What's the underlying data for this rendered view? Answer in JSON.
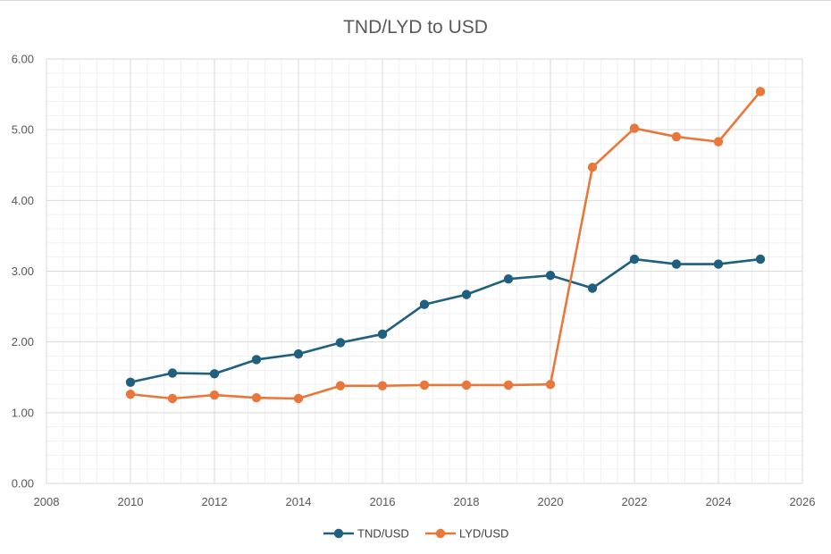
{
  "chart_data": {
    "type": "line",
    "title": "TND/LYD to USD",
    "xlabel": "",
    "ylabel": "",
    "xlim": [
      2008,
      2026
    ],
    "ylim": [
      0,
      6
    ],
    "x_ticks": [
      "2008",
      "2010",
      "2012",
      "2014",
      "2016",
      "2018",
      "2020",
      "2022",
      "2024",
      "2026"
    ],
    "y_ticks": [
      "0.00",
      "1.00",
      "2.00",
      "3.00",
      "4.00",
      "5.00",
      "6.00"
    ],
    "grid": true,
    "legend_position": "bottom",
    "x": [
      2010,
      2011,
      2012,
      2013,
      2014,
      2015,
      2016,
      2017,
      2018,
      2019,
      2020,
      2021,
      2022,
      2023,
      2024,
      2025
    ],
    "series": [
      {
        "name": "TND/USD",
        "color": "#1f5f7f",
        "values": [
          1.43,
          1.56,
          1.55,
          1.75,
          1.83,
          1.99,
          2.11,
          2.53,
          2.67,
          2.89,
          2.94,
          2.76,
          3.17,
          3.1,
          3.1,
          3.17
        ]
      },
      {
        "name": "LYD/USD",
        "color": "#e8773a",
        "values": [
          1.26,
          1.2,
          1.25,
          1.21,
          1.2,
          1.38,
          1.38,
          1.39,
          1.39,
          1.39,
          1.4,
          4.47,
          5.02,
          4.9,
          4.83,
          5.54
        ]
      }
    ]
  }
}
